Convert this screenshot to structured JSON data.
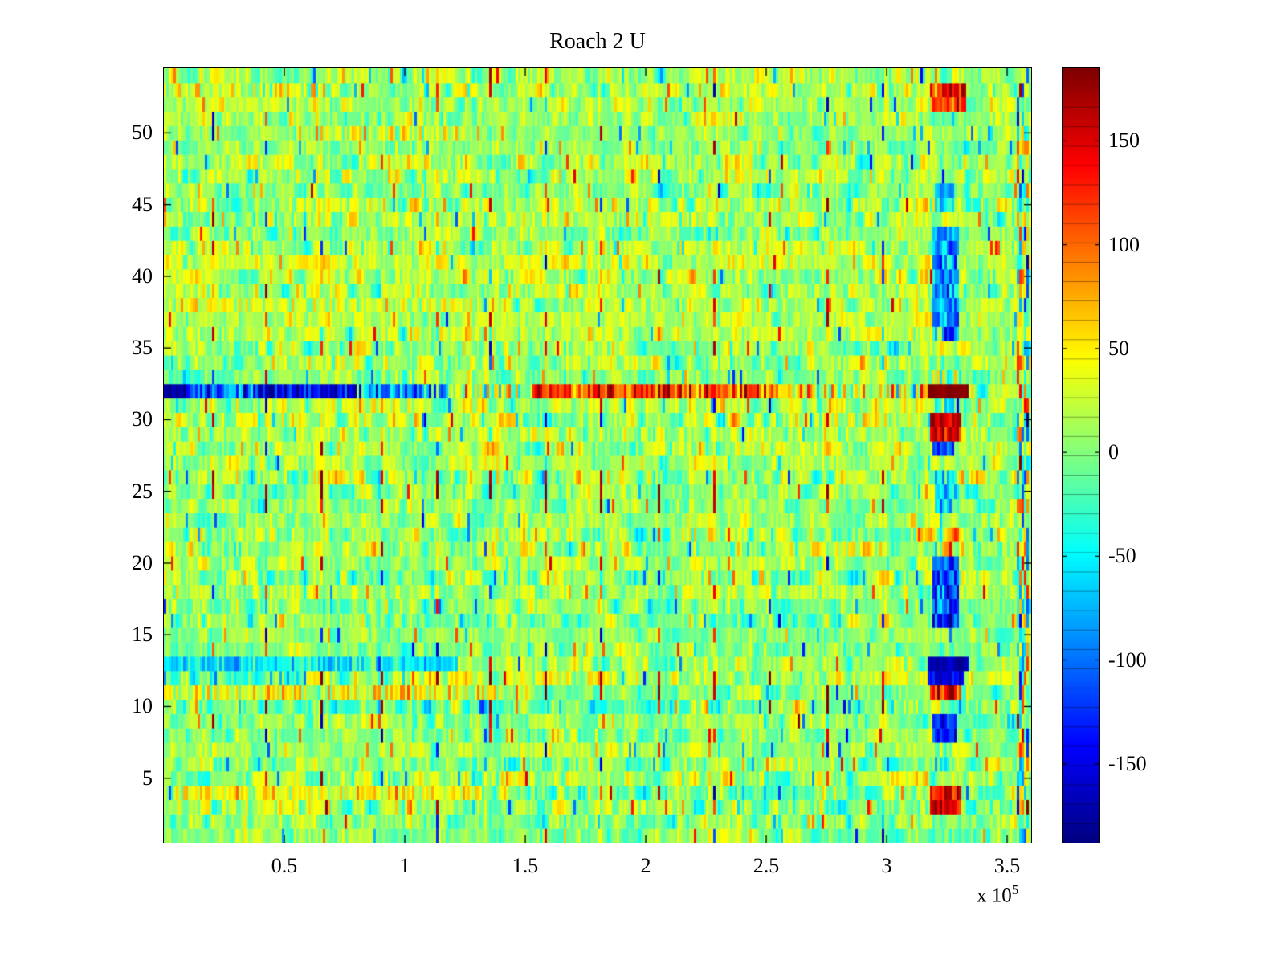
{
  "title": "Roach 2 U",
  "chart_data": {
    "type": "heatmap",
    "title": "Roach 2 U",
    "colormap": "jet",
    "x_range": [
      0,
      360000
    ],
    "x_ticks": [
      50000,
      100000,
      150000,
      200000,
      250000,
      300000,
      350000
    ],
    "x_tick_labels": [
      "0.5",
      "1",
      "1.5",
      "2",
      "2.5",
      "3",
      "3.5"
    ],
    "x_scale": {
      "base": "x 10",
      "exponent": "5"
    },
    "y_range": [
      0.5,
      54.5
    ],
    "y_ticks": [
      5,
      10,
      15,
      20,
      25,
      30,
      35,
      40,
      45,
      50
    ],
    "y_tick_labels": [
      "5",
      "10",
      "15",
      "20",
      "25",
      "30",
      "35",
      "40",
      "45",
      "50"
    ],
    "rows": 54,
    "cols": 360,
    "color_range": [
      -188,
      185
    ],
    "colorbar_ticks": [
      150,
      100,
      50,
      0,
      -50,
      -100,
      -150
    ],
    "colorbar_tick_labels": [
      "150",
      "100",
      "50",
      "0",
      "-50",
      "-100",
      "-150"
    ],
    "colorbar_segments": 40,
    "noise": {
      "seed": 20240613,
      "mean": 6,
      "std": 20,
      "ar": 0.55,
      "speckle_prob": 0.035,
      "speckle_min": 45,
      "speckle_max": 120
    },
    "vertical_spikes": {
      "xs": [
        20000,
        42000,
        65000,
        90000,
        113000,
        135000,
        158000,
        181000,
        205000,
        228000,
        251000,
        275000,
        298000
      ],
      "hot_rows": [
        10,
        11,
        12,
        24,
        25,
        26
      ],
      "hot_value": 165,
      "random_prob": 0.18,
      "random_min": 100,
      "random_max": 180
    },
    "row_bands": [
      {
        "row": 32,
        "x0": 0,
        "x1": 9000,
        "value": -178,
        "jitter": 8
      },
      {
        "row": 32,
        "x0": 9000,
        "x1": 40000,
        "value": -110,
        "jitter": 45
      },
      {
        "row": 32,
        "x0": 40000,
        "x1": 80000,
        "value": -150,
        "jitter": 35
      },
      {
        "row": 32,
        "x0": 80000,
        "x1": 118000,
        "value": -80,
        "jitter": 50
      },
      {
        "row": 32,
        "x0": 118000,
        "x1": 152000,
        "value": 20,
        "jitter": 60
      },
      {
        "row": 32,
        "x0": 152000,
        "x1": 248000,
        "value": 115,
        "jitter": 40
      },
      {
        "row": 32,
        "x0": 248000,
        "x1": 282000,
        "value": 55,
        "jitter": 50
      },
      {
        "row": 32,
        "x0": 282000,
        "x1": 318000,
        "value": 30,
        "jitter": 55
      },
      {
        "row": 13,
        "x0": 0,
        "x1": 122000,
        "value": -50,
        "jitter": 28
      },
      {
        "row": 12,
        "x0": 0,
        "x1": 60000,
        "value": -30,
        "jitter": 30
      },
      {
        "row": 4,
        "x0": 4000,
        "x1": 132000,
        "value": 42,
        "jitter": 26
      },
      {
        "row": 11,
        "x0": 0,
        "x1": 140000,
        "value": 34,
        "jitter": 30
      },
      {
        "row": 50,
        "x0": 55000,
        "x1": 130000,
        "value": 28,
        "jitter": 28
      },
      {
        "row": 38,
        "x0": 0,
        "x1": 132000,
        "value": 30,
        "jitter": 26
      },
      {
        "row": 44,
        "x0": 150000,
        "x1": 230000,
        "value": 25,
        "jitter": 26
      },
      {
        "row": 53,
        "x0": 0,
        "x1": 70000,
        "value": 30,
        "jitter": 30
      }
    ],
    "anomaly_blobs": [
      {
        "r0": 52,
        "r1": 53,
        "x0": 318000,
        "x1": 333000,
        "value": 135,
        "jitter": 35
      },
      {
        "r0": 45,
        "r1": 46,
        "x0": 320000,
        "x1": 328000,
        "value": -60,
        "jitter": 30
      },
      {
        "r0": 36,
        "r1": 43,
        "x0": 319000,
        "x1": 330000,
        "value": -85,
        "jitter": 35
      },
      {
        "r0": 33,
        "r1": 33,
        "x0": 319000,
        "x1": 331000,
        "value": 40,
        "jitter": 50
      },
      {
        "r0": 32,
        "r1": 32,
        "x0": 317000,
        "x1": 334000,
        "value": 183,
        "jitter": 6
      },
      {
        "r0": 31,
        "r1": 31,
        "x0": 319000,
        "x1": 330000,
        "value": -50,
        "jitter": 45
      },
      {
        "r0": 29,
        "r1": 30,
        "x0": 318000,
        "x1": 331000,
        "value": 160,
        "jitter": 30
      },
      {
        "r0": 28,
        "r1": 28,
        "x0": 319000,
        "x1": 328000,
        "value": -115,
        "jitter": 30
      },
      {
        "r0": 24,
        "r1": 26,
        "x0": 320000,
        "x1": 329000,
        "value": -60,
        "jitter": 35
      },
      {
        "r0": 16,
        "r1": 20,
        "x0": 319000,
        "x1": 330000,
        "value": -115,
        "jitter": 35
      },
      {
        "r0": 13,
        "r1": 13,
        "x0": 317000,
        "x1": 334000,
        "value": -172,
        "jitter": 10
      },
      {
        "r0": 12,
        "r1": 12,
        "x0": 317000,
        "x1": 332000,
        "value": -145,
        "jitter": 25
      },
      {
        "r0": 11,
        "r1": 11,
        "x0": 318000,
        "x1": 331000,
        "value": 145,
        "jitter": 30
      },
      {
        "r0": 8,
        "r1": 9,
        "x0": 319000,
        "x1": 329000,
        "value": -130,
        "jitter": 30
      },
      {
        "r0": 6,
        "r1": 7,
        "x0": 320000,
        "x1": 327000,
        "value": -55,
        "jitter": 35
      },
      {
        "r0": 3,
        "r1": 4,
        "x0": 318000,
        "x1": 331000,
        "value": 148,
        "jitter": 30
      },
      {
        "r0": 1,
        "r1": 54,
        "x0": 354000,
        "x1": 360000,
        "value": 0,
        "jitter": 78
      }
    ]
  }
}
